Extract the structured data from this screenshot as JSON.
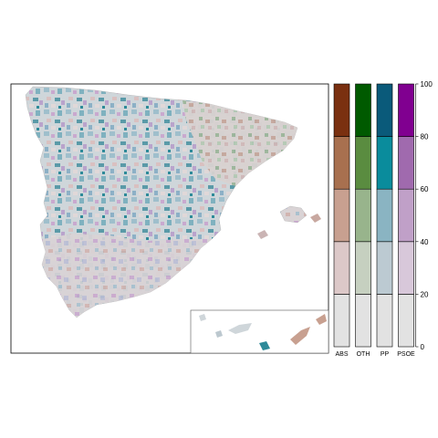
{
  "map": {
    "title": "",
    "region": "Spain",
    "inset": "Canary Islands"
  },
  "legend": {
    "categories": [
      {
        "label": "ABS",
        "colors": [
          "#e2e2e2",
          "#dcc8c8",
          "#c8a090",
          "#a8704f",
          "#7a3010"
        ]
      },
      {
        "label": "OTH",
        "colors": [
          "#e2e2e2",
          "#c6d0c0",
          "#98b48c",
          "#5a8c40",
          "#005a00"
        ]
      },
      {
        "label": "PP",
        "colors": [
          "#e2e2e2",
          "#bccad2",
          "#8ab4c2",
          "#0a8c9c",
          "#0a5a7a"
        ]
      },
      {
        "label": "PSOE",
        "colors": [
          "#e2e2e2",
          "#d8c8da",
          "#c0a0c8",
          "#a06aae",
          "#800090"
        ]
      }
    ],
    "scale": {
      "min": 0,
      "max": 100,
      "ticks": [
        "0",
        "20",
        "40",
        "60",
        "80",
        "100"
      ]
    }
  }
}
